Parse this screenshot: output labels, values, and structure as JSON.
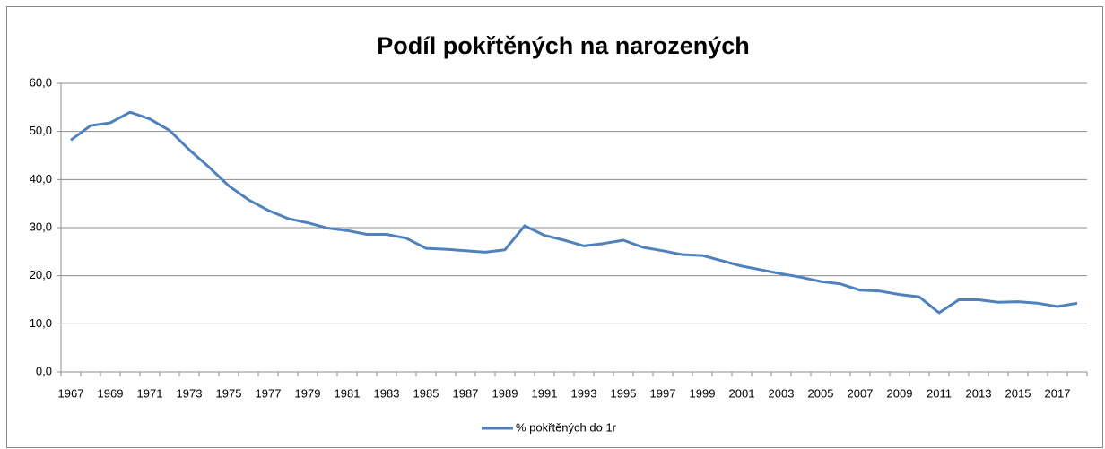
{
  "chart_data": {
    "type": "line",
    "title": "Podíl pokřtěných na narozených",
    "categories": [
      "1967",
      null,
      "1969",
      null,
      "1971",
      null,
      "1973",
      null,
      "1975",
      null,
      "1977",
      null,
      "1979",
      null,
      "1981",
      null,
      "1983",
      null,
      "1985",
      null,
      "1987",
      null,
      "1989",
      null,
      "1991",
      null,
      "1993",
      null,
      "1995",
      null,
      "1997",
      null,
      "1999",
      null,
      "2001",
      null,
      "2003",
      null,
      "2005",
      null,
      "2007",
      null,
      "2009",
      null,
      "2011",
      null,
      "2013",
      null,
      "2015",
      null,
      "2017",
      null
    ],
    "series": [
      {
        "name": "% pokřtěných do 1r",
        "color": "#4f81bd",
        "values": [
          48.2,
          51.2,
          51.8,
          54.0,
          52.6,
          50.2,
          46.2,
          42.6,
          38.7,
          35.8,
          33.6,
          31.9,
          31.0,
          29.9,
          29.4,
          28.6,
          28.6,
          27.8,
          25.7,
          25.5,
          25.2,
          24.9,
          25.4,
          30.4,
          28.4,
          27.4,
          26.2,
          26.7,
          27.4,
          25.9,
          25.2,
          24.4,
          24.2,
          23.1,
          22.0,
          21.2,
          20.4,
          19.7,
          18.8,
          18.3,
          17.0,
          16.8,
          16.1,
          15.6,
          12.3,
          15.0,
          15.0,
          14.5,
          14.6,
          14.3,
          13.6,
          14.3
        ]
      }
    ],
    "ylim": [
      0,
      60
    ],
    "yticks": [
      {
        "value": 0,
        "label": "0,0"
      },
      {
        "value": 10,
        "label": "10,0"
      },
      {
        "value": 20,
        "label": "20,0"
      },
      {
        "value": 30,
        "label": "30,0"
      },
      {
        "value": 40,
        "label": "40,0"
      },
      {
        "value": 50,
        "label": "50,0"
      },
      {
        "value": 60,
        "label": "60,0"
      }
    ],
    "grid": true,
    "legend": "bottom"
  }
}
